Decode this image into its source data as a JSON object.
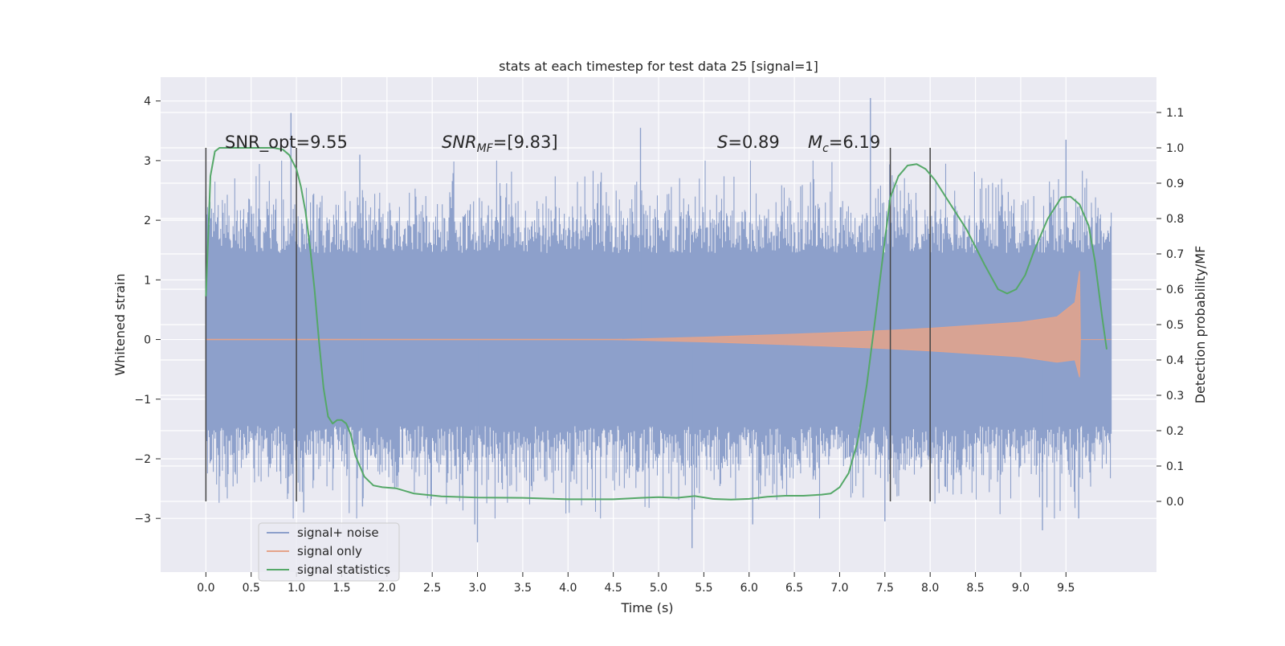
{
  "chart_data": {
    "type": "line",
    "title": "stats at each timestep for test data 25 [signal=1]",
    "xlabel": "Time (s)",
    "ylabel_left": "Whitened strain",
    "ylabel_right": "Detection probability/MF",
    "xlim": [
      -0.5,
      10.5
    ],
    "ylim_left": [
      -3.9,
      4.4
    ],
    "ylim_right": [
      -0.2,
      1.2
    ],
    "x_ticks": [
      0.0,
      0.5,
      1.0,
      1.5,
      2.0,
      2.5,
      3.0,
      3.5,
      4.0,
      4.5,
      5.0,
      5.5,
      6.0,
      6.5,
      7.0,
      7.5,
      8.0,
      8.5,
      9.0,
      9.5
    ],
    "x_tick_labels": [
      "0.0",
      "0.5",
      "1.0",
      "1.5",
      "2.0",
      "2.5",
      "3.0",
      "3.5",
      "4.0",
      "4.5",
      "5.0",
      "5.5",
      "6.0",
      "6.5",
      "7.0",
      "7.5",
      "8.0",
      "8.5",
      "9.0",
      "9.5"
    ],
    "y_left_ticks": [
      4,
      3,
      2,
      1,
      0,
      -1,
      -2,
      -3
    ],
    "y_left_tick_labels": [
      "4",
      "3",
      "2",
      "1",
      "0",
      "−1",
      "−2",
      "−3"
    ],
    "y_right_ticks": [
      1.1,
      1.0,
      0.9,
      0.8,
      0.7,
      0.6,
      0.5,
      0.4,
      0.3,
      0.2,
      0.1,
      0.0
    ],
    "y_right_tick_labels": [
      "1.1",
      "1.0",
      "0.9",
      "0.8",
      "0.7",
      "0.6",
      "0.5",
      "0.4",
      "0.3",
      "0.2",
      "0.1",
      "0.0"
    ],
    "grid": true,
    "legend_position": "lower-left",
    "annotations": {
      "snr_opt": "SNR_opt=9.55",
      "snr_mf_label": "SNR",
      "snr_mf_sub": "MF",
      "snr_mf_value": "=[9.83]",
      "s_label": "S",
      "s_value": "=0.89",
      "mc_label": "M",
      "mc_sub": "c",
      "mc_value": "=6.19"
    },
    "vertical_lines_x": [
      0.0,
      1.0,
      7.56,
      8.0
    ],
    "series": [
      {
        "name": "signal+ noise",
        "color": "#8da0cb",
        "axis": "left",
        "style": "noise",
        "x_range": [
          0.0,
          10.0
        ],
        "band_typical": [
          -1.45,
          1.45
        ],
        "outlier_peaks": [
          {
            "x": 0.0,
            "y": 2.4
          },
          {
            "x": 0.94,
            "y": 3.8
          },
          {
            "x": 1.08,
            "y": -2.9
          },
          {
            "x": 1.7,
            "y": 3.1
          },
          {
            "x": 1.73,
            "y": -2.8
          },
          {
            "x": 2.97,
            "y": -3.1
          },
          {
            "x": 3.0,
            "y": -3.4
          },
          {
            "x": 4.8,
            "y": 3.55
          },
          {
            "x": 5.37,
            "y": -3.5
          },
          {
            "x": 6.04,
            "y": -3.1
          },
          {
            "x": 7.34,
            "y": 4.05
          },
          {
            "x": 7.5,
            "y": -3.05
          },
          {
            "x": 9.24,
            "y": -3.2
          },
          {
            "x": 9.5,
            "y": 3.35
          },
          {
            "x": 9.64,
            "y": -3.0
          }
        ]
      },
      {
        "name": "signal only",
        "color": "#e5a38a",
        "axis": "left",
        "style": "chirp",
        "envelope": [
          [
            0.0,
            0.0
          ],
          [
            4.5,
            0.0
          ],
          [
            5.5,
            0.04
          ],
          [
            6.5,
            0.09
          ],
          [
            7.5,
            0.15
          ],
          [
            8.0,
            0.19
          ],
          [
            8.5,
            0.24
          ],
          [
            9.0,
            0.29
          ],
          [
            9.4,
            0.38
          ],
          [
            9.6,
            0.62
          ],
          [
            9.65,
            1.15
          ],
          [
            9.66,
            0.0
          ],
          [
            10.0,
            0.0
          ]
        ]
      },
      {
        "name": "signal statistics",
        "color": "#55a868",
        "axis": "right",
        "style": "line",
        "x": [
          0.0,
          0.05,
          0.1,
          0.15,
          0.25,
          0.4,
          0.6,
          0.75,
          0.85,
          0.92,
          1.0,
          1.05,
          1.1,
          1.15,
          1.2,
          1.25,
          1.3,
          1.35,
          1.4,
          1.45,
          1.5,
          1.55,
          1.6,
          1.65,
          1.75,
          1.85,
          1.95,
          2.1,
          2.3,
          2.6,
          3.0,
          3.5,
          4.0,
          4.5,
          4.8,
          5.0,
          5.2,
          5.4,
          5.6,
          5.8,
          6.0,
          6.2,
          6.4,
          6.6,
          6.8,
          6.9,
          7.0,
          7.1,
          7.2,
          7.3,
          7.4,
          7.5,
          7.56,
          7.65,
          7.75,
          7.85,
          7.95,
          8.05,
          8.2,
          8.4,
          8.6,
          8.75,
          8.85,
          8.95,
          9.05,
          9.15,
          9.3,
          9.45,
          9.55,
          9.65,
          9.75,
          9.82,
          9.9,
          9.95
        ],
        "y": [
          0.58,
          0.92,
          0.99,
          1.0,
          1.0,
          1.0,
          1.0,
          1.0,
          0.995,
          0.98,
          0.94,
          0.89,
          0.82,
          0.72,
          0.6,
          0.45,
          0.32,
          0.24,
          0.22,
          0.23,
          0.23,
          0.22,
          0.19,
          0.13,
          0.07,
          0.045,
          0.04,
          0.037,
          0.022,
          0.014,
          0.011,
          0.01,
          0.006,
          0.006,
          0.01,
          0.012,
          0.01,
          0.015,
          0.007,
          0.005,
          0.007,
          0.013,
          0.016,
          0.016,
          0.019,
          0.022,
          0.04,
          0.08,
          0.17,
          0.33,
          0.53,
          0.74,
          0.86,
          0.92,
          0.95,
          0.954,
          0.94,
          0.91,
          0.85,
          0.77,
          0.67,
          0.6,
          0.588,
          0.6,
          0.64,
          0.71,
          0.8,
          0.86,
          0.862,
          0.84,
          0.78,
          0.68,
          0.52,
          0.43
        ]
      }
    ]
  }
}
